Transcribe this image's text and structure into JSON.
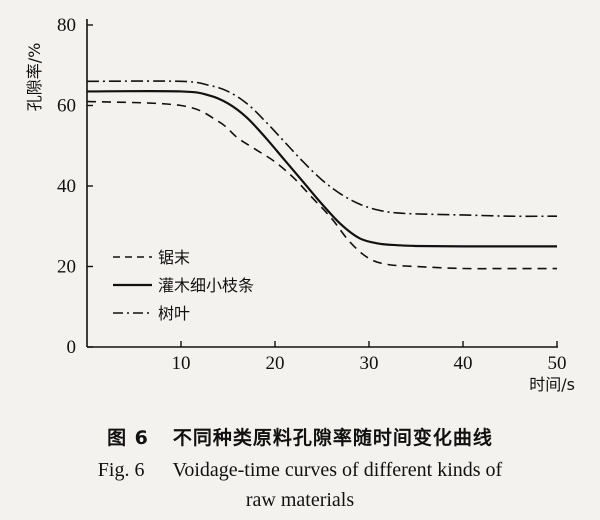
{
  "chart_data": {
    "type": "line",
    "xlabel": "时间/s",
    "ylabel": "孔隙率/%",
    "xlim": [
      0,
      50
    ],
    "ylim": [
      0,
      80
    ],
    "xticks": [
      10,
      20,
      30,
      40,
      50
    ],
    "yticks": [
      0,
      20,
      40,
      60,
      80
    ],
    "grid": false,
    "legend_position": "lower-left",
    "series": [
      {
        "name": "锯末",
        "style": "dashed",
        "x": [
          0,
          10,
          14,
          16,
          18,
          20,
          22,
          24,
          26,
          28,
          30,
          32,
          35,
          40,
          45,
          50
        ],
        "y": [
          61,
          60,
          56,
          52,
          49,
          46,
          42,
          37,
          32,
          26,
          22,
          20.5,
          20,
          19.5,
          19.5,
          19.5
        ]
      },
      {
        "name": "灌木细小枝条",
        "style": "solid",
        "x": [
          0,
          10,
          13,
          15,
          17,
          19,
          21,
          23,
          25,
          27,
          29,
          31,
          33,
          35,
          40,
          45,
          50
        ],
        "y": [
          63.5,
          63.5,
          62.5,
          60.5,
          57,
          52,
          46.5,
          41,
          35.5,
          30.5,
          27,
          25.7,
          25.3,
          25.1,
          25,
          25,
          25
        ]
      },
      {
        "name": "树叶",
        "style": "dashdot",
        "x": [
          0,
          10,
          13,
          15,
          17,
          19,
          21,
          23,
          25,
          27,
          29,
          31,
          33,
          36,
          40,
          45,
          50
        ],
        "y": [
          66,
          66,
          65,
          63.5,
          60.5,
          56,
          51,
          46,
          41.5,
          38,
          35.5,
          34,
          33.3,
          33,
          32.8,
          32.5,
          32.5
        ]
      }
    ]
  },
  "caption": {
    "cn_label": "图 6",
    "cn_text": "不同种类原料孔隙率随时间变化曲线",
    "en_label": "Fig. 6",
    "en_text_line1": "Voidage-time curves of different kinds of",
    "en_text_line2": "raw materials"
  }
}
